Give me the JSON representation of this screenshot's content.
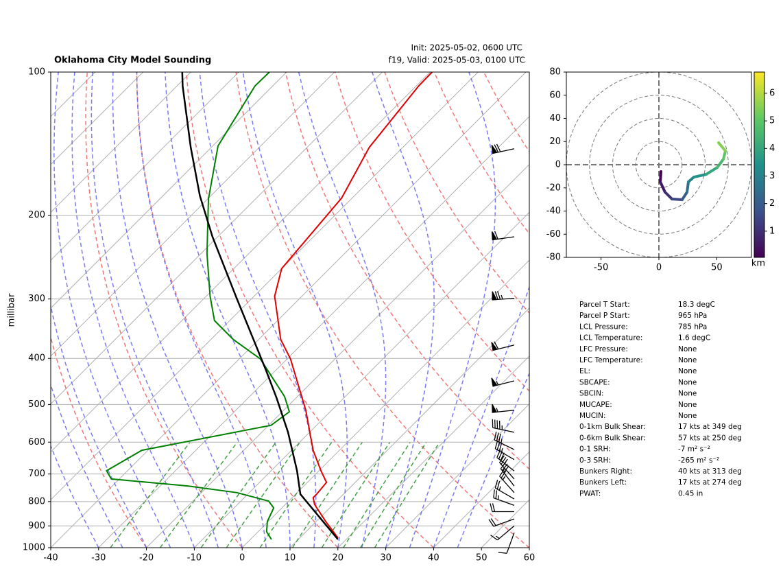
{
  "chart_data": [
    {
      "type": "skewt",
      "title": "Oklahoma City Model Sounding",
      "init": "Init: 2025-05-02, 0600 UTC",
      "valid": "f19, Valid: 2025-05-03, 0100 UTC",
      "ylabel": "millibar",
      "xlim": [
        -40,
        60
      ],
      "ylim": [
        1000,
        100
      ],
      "log_y": true,
      "grid": true,
      "xticks": [
        -40,
        -30,
        -20,
        -10,
        0,
        10,
        20,
        30,
        40,
        50,
        60
      ],
      "yticks": [
        1000,
        900,
        800,
        700,
        600,
        500,
        400,
        300,
        200,
        100
      ],
      "series": [
        {
          "color": "#e00000",
          "pressure": [
            954,
            881,
            811,
            785,
            772,
            729,
            689,
            624,
            514,
            401,
            365,
            296,
            259,
            184,
            144,
            107,
            100
          ],
          "temperature": [
            18.0,
            12.0,
            6.1,
            4.4,
            4.4,
            4.0,
            0.4,
            -5.5,
            -15.4,
            -29.3,
            -35.4,
            -45.7,
            -50.0,
            -52.2,
            -57.0,
            -59.5,
            -59.6
          ]
        },
        {
          "color": "#008000",
          "pressure": [
            961,
            926,
            881,
            825,
            798,
            766,
            742,
            717,
            689,
            624,
            553,
            518,
            481,
            401,
            365,
            333,
            296,
            241,
            185,
            143,
            107,
            100
          ],
          "temperature": [
            4.4,
            1.8,
            -0.2,
            -1.7,
            -4.2,
            -12.6,
            -24.1,
            -41.7,
            -44.4,
            -41.3,
            -19.5,
            -18.5,
            -22.7,
            -35.6,
            -45.3,
            -53.2,
            -59.2,
            -68.7,
            -79.8,
            -88.9,
            -93.7,
            -93.6
          ]
        },
        {
          "color": "#000000",
          "pressure": [
            961,
            772,
            689,
            572,
            485,
            424,
            299,
            222,
            182,
            144,
            107,
            100
          ],
          "temperature": [
            18.3,
            1.0,
            -4.6,
            -14.5,
            -24.0,
            -32.0,
            -53.2,
            -71.1,
            -82.3,
            -94.3,
            -108.8,
            -111.8
          ]
        }
      ],
      "wind": {
        "pressure": [
          145,
          222,
          299,
          375,
          446,
          514,
          572,
          622,
          653,
          690,
          717,
          742,
          766,
          790,
          815,
          840,
          870,
          900,
          930
        ],
        "speed": [
          70,
          60,
          75,
          60,
          55,
          55,
          45,
          35,
          35,
          30,
          30,
          30,
          25,
          25,
          25,
          20,
          20,
          15,
          10
        ],
        "direction": [
          258,
          262,
          266,
          256,
          256,
          264,
          282,
          296,
          300,
          308,
          318,
          322,
          318,
          300,
          290,
          270,
          250,
          230,
          200
        ]
      }
    },
    {
      "type": "hodograph",
      "xlim": [
        -80,
        80
      ],
      "ylim": [
        -80,
        80
      ],
      "xticks": [
        -50,
        0,
        50
      ],
      "yticks": [
        -80,
        -60,
        -40,
        -20,
        0,
        20,
        40,
        60,
        80
      ],
      "u": [
        1.8,
        1.2,
        5.3,
        11.3,
        20.1,
        24.3,
        25.5,
        30.2,
        40.9,
        50.4,
        55.7,
        57.5,
        51.6
      ],
      "v": [
        -5.9,
        -14.8,
        -23.7,
        -29.6,
        -30.2,
        -23.7,
        -14.8,
        -10.7,
        -8.3,
        -2.4,
        4.7,
        11.9,
        19.0
      ],
      "height": [
        0.1,
        0.5,
        1.0,
        1.5,
        2.0,
        2.5,
        3.0,
        3.5,
        4.0,
        4.5,
        5.0,
        5.5,
        6.5
      ],
      "colorbar": {
        "label": "km",
        "lim": [
          0.05,
          6.77
        ],
        "ticks": [
          1,
          2,
          3,
          4,
          5,
          6
        ]
      }
    }
  ],
  "parameters": {
    "rows": [
      [
        "Parcel T Start:",
        "18.3 degC"
      ],
      [
        "Parcel P Start:",
        "965 hPa"
      ],
      [
        "LCL Pressure:",
        "785 hPa"
      ],
      [
        "LCL Temperature:",
        "1.6 degC"
      ],
      [
        "LFC Pressure:",
        "None"
      ],
      [
        "LFC Temperature:",
        "None"
      ],
      [
        "EL:",
        "None"
      ],
      [
        "SBCAPE:",
        "None"
      ],
      [
        "SBCIN:",
        "None"
      ],
      [
        "MUCAPE:",
        "None"
      ],
      [
        "MUCIN:",
        "None"
      ],
      [
        "0-1km Bulk Shear:",
        "17 kts at 349 deg"
      ],
      [
        "0-6km Bulk Shear:",
        "57 kts at 250 deg"
      ],
      [
        "0-1 SRH:",
        "-7 m² s⁻²"
      ],
      [
        "0-3 SRH:",
        "-265 m² s⁻²"
      ],
      [
        "Bunkers Right:",
        "40 kts at 313 deg"
      ],
      [
        "Bunkers Left:",
        "17 kts at 274 deg"
      ],
      [
        "PWAT:",
        "0.45 in"
      ]
    ]
  }
}
